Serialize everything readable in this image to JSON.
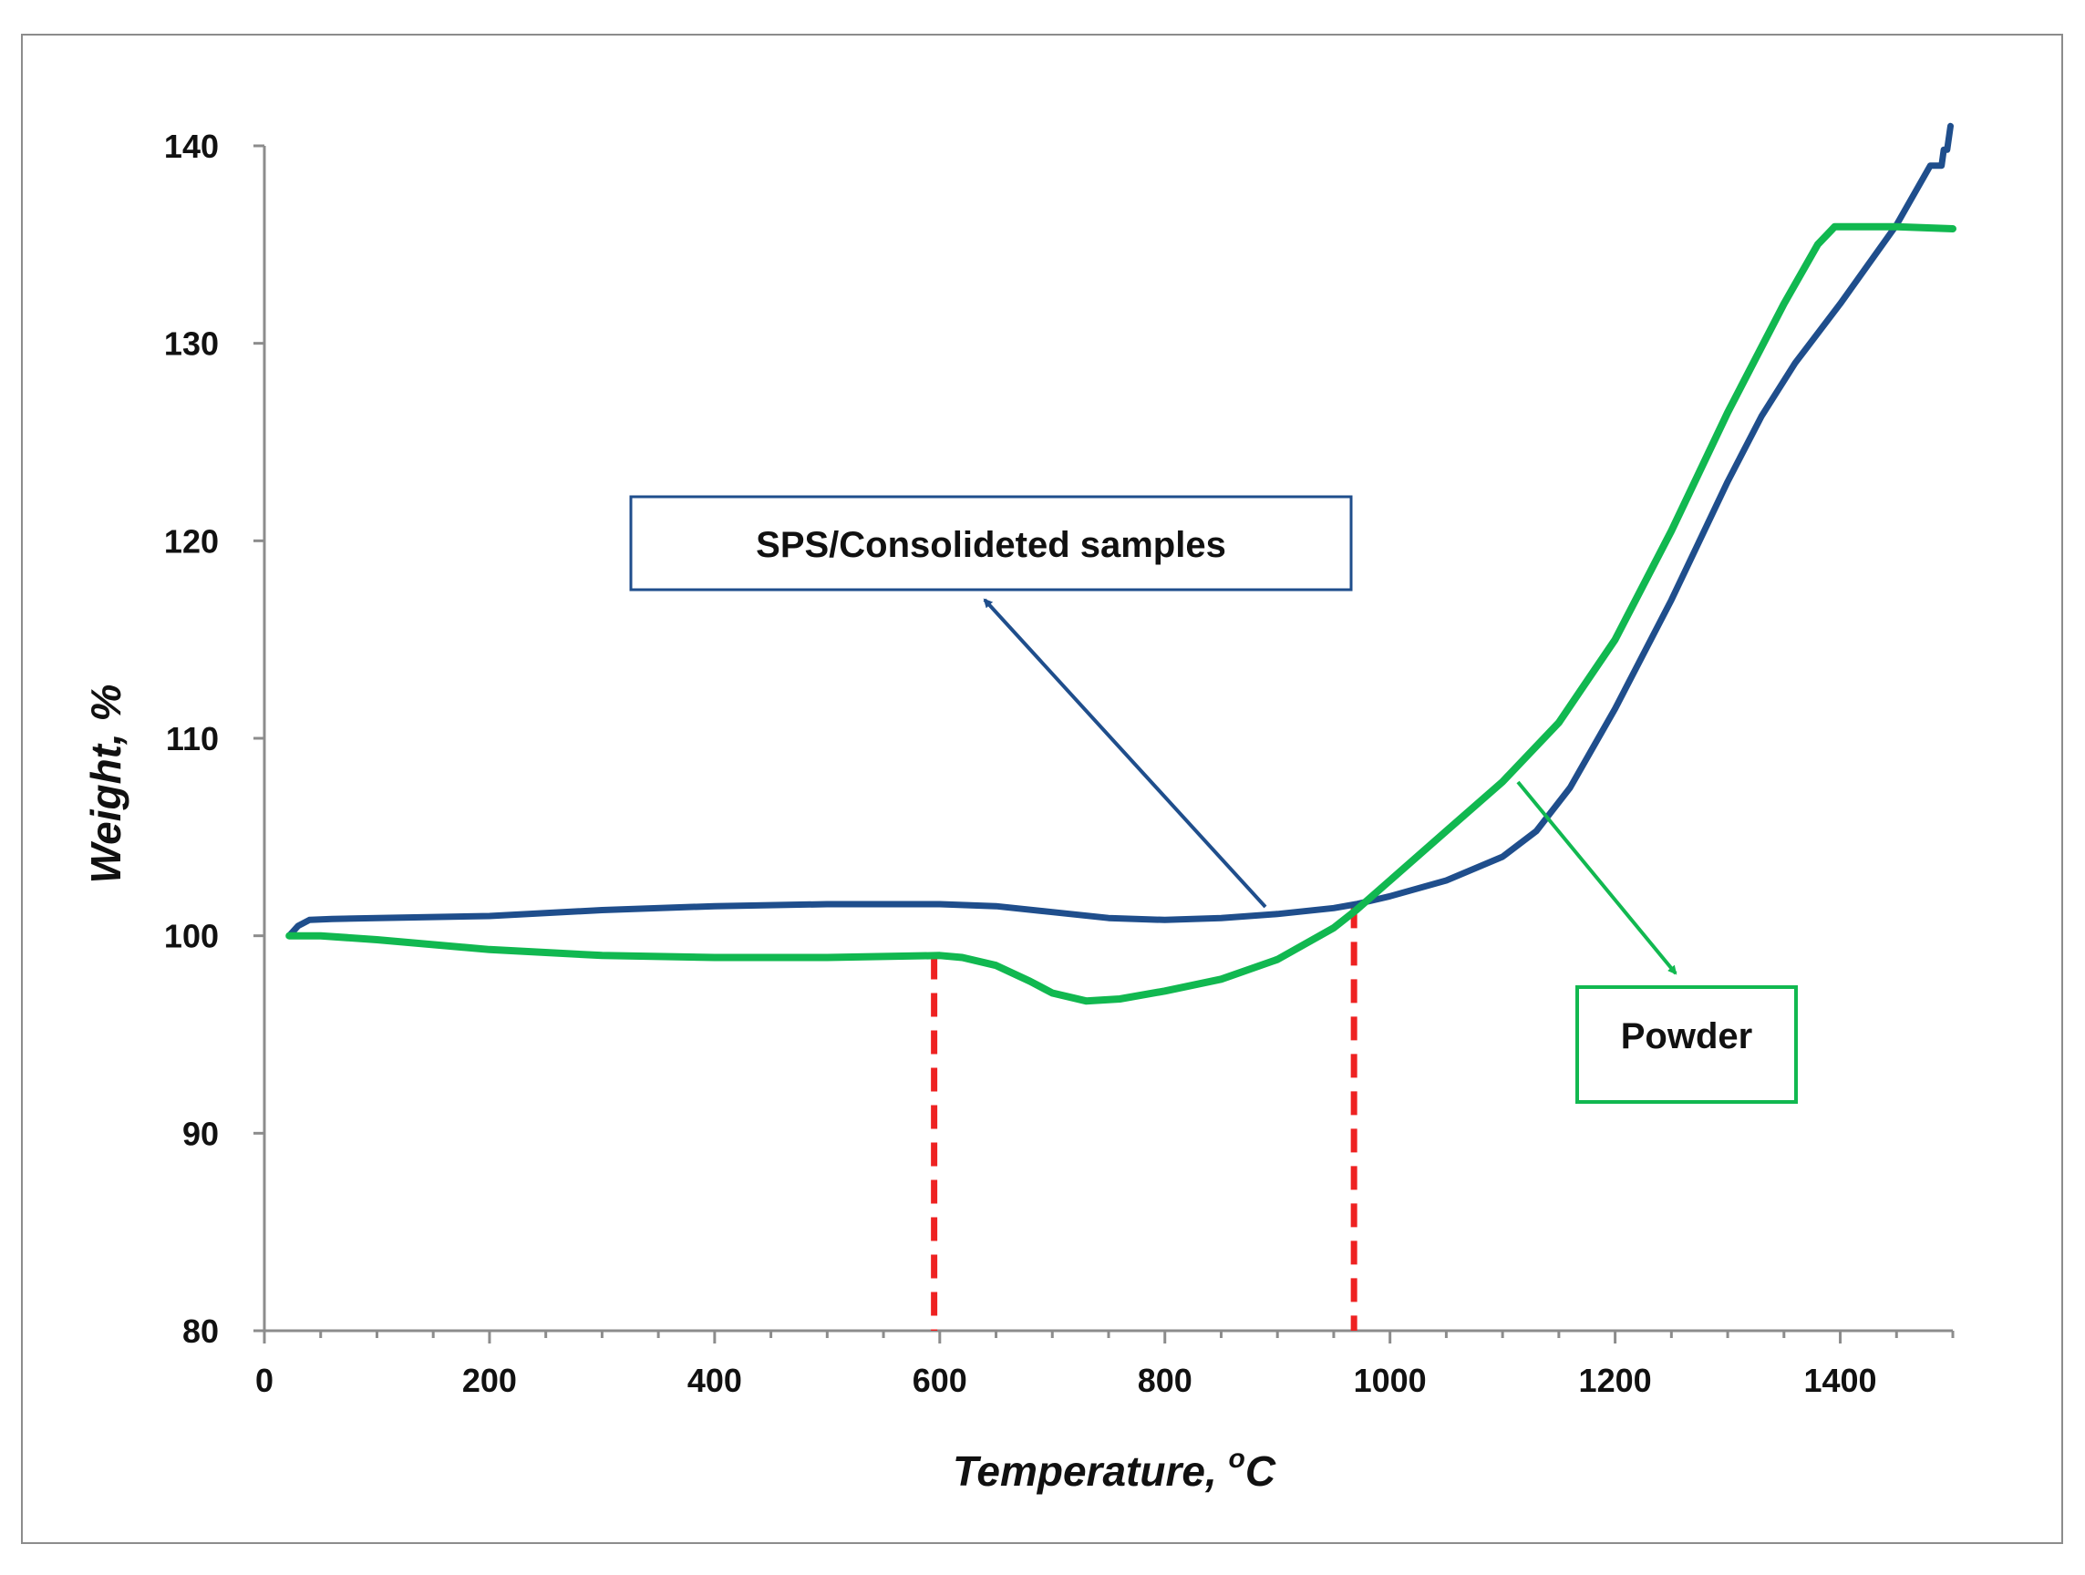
{
  "chart_data": {
    "type": "line",
    "title": "",
    "xlabel": "Temperature, ",
    "xlabel_sup": "o",
    "xlabel_unit": "C",
    "ylabel": "Weight, %",
    "xlim": [
      0,
      1500
    ],
    "ylim": [
      80,
      140
    ],
    "xticks": [
      0,
      200,
      400,
      600,
      800,
      1000,
      1200,
      1400
    ],
    "yticks": [
      80,
      90,
      100,
      110,
      120,
      130,
      140
    ],
    "grid": false,
    "series": [
      {
        "name": "SPS/Consolideted samples",
        "color": "#1f4e8c",
        "x": [
          22,
          30,
          40,
          60,
          100,
          200,
          300,
          400,
          500,
          600,
          650,
          700,
          750,
          800,
          850,
          900,
          950,
          970,
          1000,
          1050,
          1100,
          1130,
          1160,
          1200,
          1250,
          1300,
          1330,
          1360,
          1400,
          1450,
          1480,
          1490,
          1492,
          1495,
          1498
        ],
        "values": [
          100.0,
          100.5,
          100.8,
          100.85,
          100.9,
          101.0,
          101.3,
          101.5,
          101.6,
          101.6,
          101.5,
          101.2,
          100.9,
          100.8,
          100.9,
          101.1,
          101.4,
          101.6,
          102.0,
          102.8,
          104.0,
          105.3,
          107.5,
          111.5,
          117.0,
          123.0,
          126.3,
          129.0,
          132.0,
          136.0,
          139.0,
          139.0,
          139.8,
          139.8,
          141.0
        ]
      },
      {
        "name": "Powder",
        "color": "#11b850",
        "x": [
          22,
          50,
          100,
          200,
          300,
          400,
          500,
          600,
          620,
          650,
          680,
          700,
          730,
          760,
          800,
          850,
          900,
          950,
          970,
          1000,
          1050,
          1100,
          1150,
          1200,
          1250,
          1300,
          1350,
          1380,
          1395,
          1400,
          1450,
          1500
        ],
        "values": [
          100.0,
          100.0,
          99.8,
          99.3,
          99.0,
          98.9,
          98.9,
          99.0,
          98.9,
          98.5,
          97.7,
          97.1,
          96.7,
          96.8,
          97.2,
          97.8,
          98.8,
          100.4,
          101.3,
          102.8,
          105.3,
          107.8,
          110.8,
          115.0,
          120.5,
          126.5,
          132.0,
          135.0,
          135.9,
          135.9,
          135.9,
          135.8
        ]
      }
    ],
    "reference_lines": [
      {
        "x": 595,
        "style": "dashed",
        "color": "#ee2222"
      },
      {
        "x": 968,
        "style": "dashed",
        "color": "#ee2222"
      }
    ],
    "annotations": [
      {
        "text": "SPS/Consolideted samples",
        "border_color": "#1f4e8c",
        "arrow_color": "#1f4e8c"
      },
      {
        "text": "Powder",
        "border_color": "#11b850",
        "arrow_color": "#11b850"
      }
    ]
  }
}
